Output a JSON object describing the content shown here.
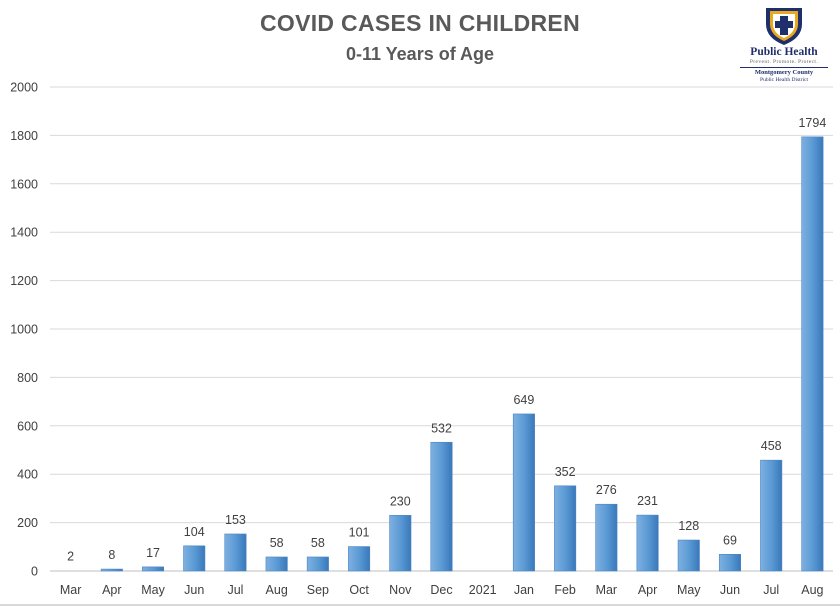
{
  "logo": {
    "brand": "Public Health",
    "tagline": "Prevent. Promote. Protect.",
    "county": "Montgomery County",
    "district": "Public Health District",
    "colors": {
      "navy": "#1f2f6b",
      "gold": "#e8a91e"
    }
  },
  "chart_data": {
    "type": "bar",
    "title": "COVID CASES IN CHILDREN",
    "subtitle": "0-11 Years of Age",
    "xlabel": "",
    "ylabel": "",
    "ylim": [
      0,
      2000
    ],
    "yticks": [
      0,
      200,
      400,
      600,
      800,
      1000,
      1200,
      1400,
      1600,
      1800,
      2000
    ],
    "grid": true,
    "legend": "none",
    "bar_color": "#5b9bd5",
    "categories": [
      "Mar",
      "Apr",
      "May",
      "Jun",
      "Jul",
      "Aug",
      "Sep",
      "Oct",
      "Nov",
      "Dec",
      "2021",
      "Jan",
      "Feb",
      "Mar",
      "Apr",
      "May",
      "Jun",
      "Jul",
      "Aug"
    ],
    "values": [
      2,
      8,
      17,
      104,
      153,
      58,
      58,
      101,
      230,
      532,
      null,
      649,
      352,
      276,
      231,
      128,
      69,
      458,
      1794
    ]
  }
}
